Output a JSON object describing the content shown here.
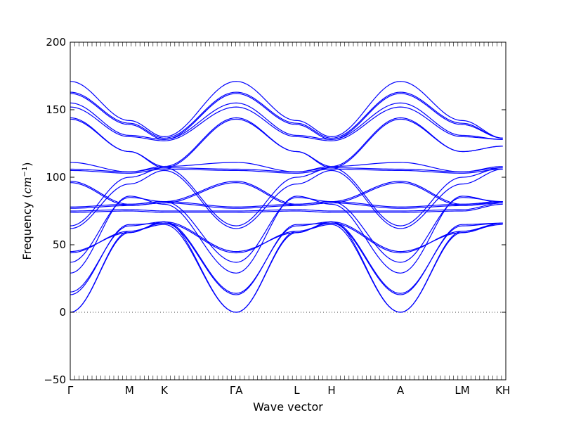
{
  "chart_data": {
    "type": "line",
    "title": "",
    "xlabel": "Wave vector",
    "ylabel": "Frequency (",
    "ylabel_unit": "cm",
    "ylabel_exponent": "−1",
    "ylabel_close": ")",
    "ylim": [
      -50,
      200
    ],
    "yticks": [
      -50,
      0,
      50,
      100,
      150,
      200
    ],
    "ytick_labels": [
      "−50",
      "0",
      "50",
      "100",
      "150",
      "200"
    ],
    "xlim": [
      0,
      1
    ],
    "high_symmetry_points": [
      {
        "label": "Γ",
        "x": 0.0
      },
      {
        "label": "M",
        "x": 0.136
      },
      {
        "label": "K",
        "x": 0.216
      },
      {
        "label": "ΓA",
        "x": 0.381
      },
      {
        "label": "L",
        "x": 0.52
      },
      {
        "label": "H",
        "x": 0.6
      },
      {
        "label": "A",
        "x": 0.758
      },
      {
        "label": "LM",
        "x": 0.9
      },
      {
        "label": "KH",
        "x": 0.993
      }
    ],
    "zero_line": {
      "y": 0,
      "style": "dotted"
    },
    "line_color": "#0000ff",
    "series": [
      {
        "y": [
          0,
          60,
          65,
          0,
          60,
          65,
          0,
          60,
          65
        ]
      },
      {
        "y": [
          0,
          59,
          67,
          0,
          59,
          67,
          0,
          59,
          66
        ]
      },
      {
        "y": [
          13,
          65,
          66,
          13,
          65,
          66,
          13,
          65,
          66
        ]
      },
      {
        "y": [
          15,
          64,
          67,
          14,
          64,
          67,
          14,
          64,
          66
        ]
      },
      {
        "y": [
          29,
          86,
          80,
          29,
          86,
          80,
          29,
          86,
          81
        ]
      },
      {
        "y": [
          37,
          85,
          82,
          37,
          85,
          82,
          37,
          85,
          82
        ]
      },
      {
        "y": [
          44,
          60,
          66,
          44,
          60,
          66,
          44,
          60,
          66
        ]
      },
      {
        "y": [
          45,
          59,
          67,
          45,
          59,
          67,
          45,
          59,
          66
        ]
      },
      {
        "y": [
          62,
          95,
          105,
          62,
          95,
          105,
          62,
          95,
          106
        ]
      },
      {
        "y": [
          64,
          100,
          107,
          64,
          100,
          107,
          64,
          100,
          107
        ]
      },
      {
        "y": [
          74,
          75,
          74,
          74,
          75,
          74,
          74,
          75,
          80
        ]
      },
      {
        "y": [
          75,
          76,
          75,
          75,
          76,
          75,
          75,
          76,
          81
        ]
      },
      {
        "y": [
          77,
          79,
          81,
          77,
          79,
          81,
          77,
          79,
          82
        ]
      },
      {
        "y": [
          78,
          80,
          82,
          78,
          80,
          82,
          78,
          80,
          82
        ]
      },
      {
        "y": [
          96,
          79,
          81,
          96,
          79,
          81,
          96,
          79,
          81
        ]
      },
      {
        "y": [
          97,
          80,
          82,
          97,
          80,
          82,
          97,
          80,
          82
        ]
      },
      {
        "y": [
          105,
          103,
          106,
          105,
          103,
          106,
          105,
          103,
          106
        ]
      },
      {
        "y": [
          106,
          104,
          107,
          106,
          104,
          107,
          106,
          104,
          107
        ]
      },
      {
        "y": [
          111,
          104,
          108,
          111,
          104,
          108,
          111,
          104,
          108
        ]
      },
      {
        "y": [
          143,
          119,
          107,
          143,
          119,
          107,
          143,
          119,
          123
        ]
      },
      {
        "y": [
          144,
          119,
          108,
          144,
          119,
          108,
          144,
          119,
          123
        ]
      },
      {
        "y": [
          152,
          130,
          127,
          152,
          130,
          127,
          152,
          130,
          128
        ]
      },
      {
        "y": [
          155,
          131,
          128,
          155,
          131,
          128,
          155,
          131,
          128
        ]
      },
      {
        "y": [
          162,
          139,
          128,
          162,
          139,
          128,
          162,
          139,
          129
        ]
      },
      {
        "y": [
          163,
          140,
          129,
          163,
          140,
          129,
          163,
          140,
          129
        ]
      },
      {
        "y": [
          171,
          142,
          130,
          171,
          142,
          130,
          171,
          142,
          129
        ]
      }
    ]
  }
}
